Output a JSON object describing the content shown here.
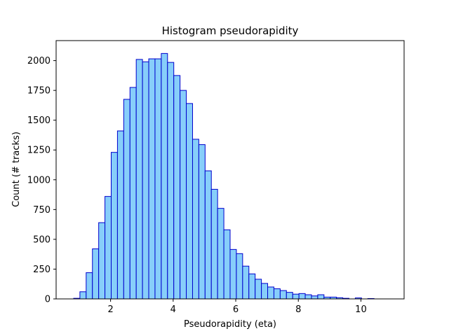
{
  "chart_data": {
    "type": "bar",
    "title": "Histogram pseudorapidity",
    "xlabel": "Pseudorapidity (eta)",
    "ylabel": "Count (# tracks)",
    "xlim": [
      0.26,
      11.38
    ],
    "ylim": [
      0,
      2168
    ],
    "xticks": [
      2,
      4,
      6,
      8,
      10
    ],
    "yticks": [
      0,
      250,
      500,
      750,
      1000,
      1250,
      1500,
      1750,
      2000
    ],
    "bin_start": 0.82,
    "bin_width": 0.2,
    "values": [
      5,
      60,
      220,
      420,
      640,
      860,
      1230,
      1410,
      1675,
      1775,
      2010,
      1990,
      2015,
      2015,
      2060,
      1985,
      1875,
      1750,
      1640,
      1340,
      1295,
      1075,
      920,
      760,
      580,
      415,
      380,
      275,
      210,
      165,
      130,
      100,
      85,
      70,
      55,
      40,
      45,
      35,
      25,
      35,
      15,
      15,
      10,
      5,
      0,
      8,
      0,
      3,
      0,
      0
    ],
    "colors": {
      "fill": "#87cefa",
      "edge": "#0000cd"
    },
    "grid": false
  }
}
